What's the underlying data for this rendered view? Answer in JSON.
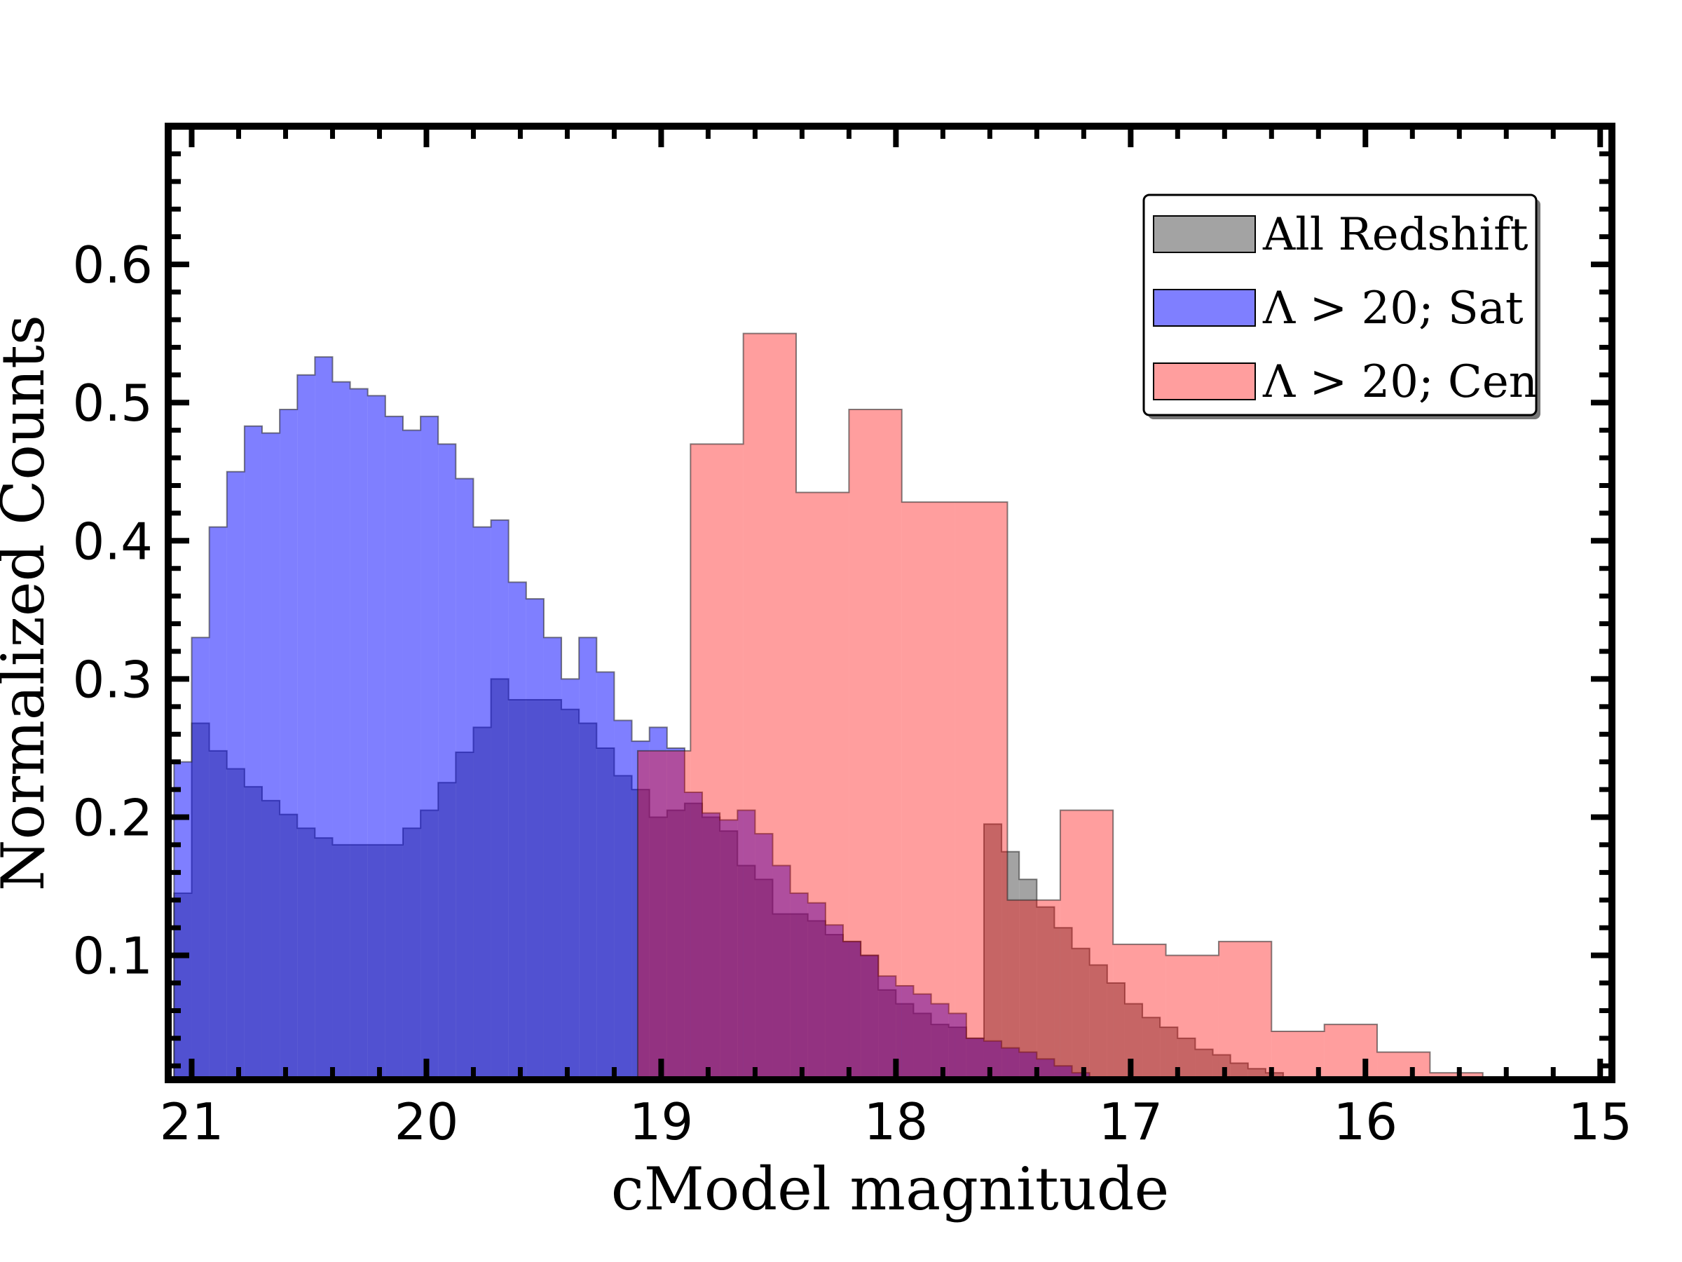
{
  "chart_data": {
    "type": "histogram",
    "title": "",
    "xlabel": "cModel magnitude",
    "ylabel": "Normalized Counts",
    "xlim": [
      21.1,
      14.95
    ],
    "ylim": [
      0.01,
      0.7
    ],
    "x_inverted": true,
    "xticks": [
      21,
      20,
      19,
      18,
      17,
      16,
      15
    ],
    "yticks": [
      0.1,
      0.2,
      0.3,
      0.4,
      0.5,
      0.6
    ],
    "xtick_labels": [
      "21",
      "20",
      "19",
      "18",
      "17",
      "16",
      "15"
    ],
    "ytick_labels": [
      "0.1",
      "0.2",
      "0.3",
      "0.4",
      "0.5",
      "0.6"
    ],
    "grid": false,
    "legend_position": "top-right",
    "series": [
      {
        "name": "All Redshift",
        "color": "#666666",
        "bin_width": 0.075,
        "bins_start": [
          21.075,
          21.0,
          20.925,
          20.85,
          20.775,
          20.7,
          20.625,
          20.55,
          20.475,
          20.4,
          20.325,
          20.25,
          20.175,
          20.1,
          20.025,
          19.95,
          19.875,
          19.8,
          19.725,
          19.65,
          19.575,
          19.5,
          19.425,
          19.35,
          19.275,
          19.2,
          19.125,
          19.05,
          18.975,
          18.9,
          18.825,
          18.75,
          18.675,
          18.6,
          18.525,
          18.45,
          18.375,
          18.3,
          18.225,
          18.15,
          18.075,
          18.0,
          17.925,
          17.85,
          17.775,
          17.7,
          17.625,
          17.55,
          17.475,
          17.4,
          17.325,
          17.25,
          17.175,
          17.1,
          17.025,
          16.95,
          16.875,
          16.8,
          16.725,
          16.65,
          16.575,
          16.5,
          16.425,
          16.35,
          16.275,
          16.2,
          16.125,
          16.05,
          15.975
        ],
        "values": [
          0.145,
          0.268,
          0.248,
          0.235,
          0.222,
          0.212,
          0.202,
          0.192,
          0.185,
          0.18,
          0.18,
          0.18,
          0.18,
          0.192,
          0.205,
          0.225,
          0.247,
          0.265,
          0.3,
          0.285,
          0.285,
          0.285,
          0.278,
          0.268,
          0.25,
          0.23,
          0.22,
          0.2,
          0.205,
          0.21,
          0.2,
          0.19,
          0.165,
          0.155,
          0.13,
          0.13,
          0.125,
          0.115,
          0.11,
          0.1,
          0.075,
          0.065,
          0.058,
          0.05,
          0.048,
          0.04,
          0.195,
          0.175,
          0.155,
          0.135,
          0.12,
          0.105,
          0.093,
          0.08,
          0.065,
          0.055,
          0.048,
          0.04,
          0.032,
          0.028,
          0.022,
          0.018,
          0.015,
          0.012,
          0.01,
          0.008,
          0.005,
          0.002,
          0.001
        ]
      },
      {
        "name": "Λ > 20; Sat",
        "color": "#0000ff",
        "bin_width": 0.075,
        "bins_start": [
          21.075,
          21.0,
          20.925,
          20.85,
          20.775,
          20.7,
          20.625,
          20.55,
          20.475,
          20.4,
          20.325,
          20.25,
          20.175,
          20.1,
          20.025,
          19.95,
          19.875,
          19.8,
          19.725,
          19.65,
          19.575,
          19.5,
          19.425,
          19.35,
          19.275,
          19.2,
          19.125,
          19.05,
          18.975,
          18.9,
          18.825,
          18.75,
          18.675,
          18.6,
          18.525,
          18.45,
          18.375,
          18.3,
          18.225,
          18.15,
          18.075,
          18.0,
          17.925,
          17.85,
          17.775,
          17.7,
          17.625,
          17.55,
          17.475,
          17.4,
          17.325,
          17.25,
          17.175,
          17.1
        ],
        "values": [
          0.24,
          0.33,
          0.41,
          0.45,
          0.483,
          0.478,
          0.495,
          0.52,
          0.533,
          0.515,
          0.51,
          0.505,
          0.49,
          0.48,
          0.49,
          0.47,
          0.445,
          0.41,
          0.415,
          0.37,
          0.358,
          0.33,
          0.3,
          0.33,
          0.305,
          0.27,
          0.255,
          0.265,
          0.25,
          0.218,
          0.203,
          0.198,
          0.205,
          0.188,
          0.165,
          0.145,
          0.138,
          0.122,
          0.11,
          0.1,
          0.085,
          0.078,
          0.072,
          0.065,
          0.058,
          0.04,
          0.038,
          0.033,
          0.03,
          0.025,
          0.02,
          0.015,
          0.01,
          0.005
        ]
      },
      {
        "name": "Λ > 20; Cen",
        "color": "#ff0000",
        "bin_width": 0.225,
        "bins_start": [
          19.1,
          18.875,
          18.65,
          18.425,
          18.2,
          17.975,
          17.75,
          17.525,
          17.3,
          17.075,
          16.85,
          16.625,
          16.4,
          16.175,
          15.95,
          15.725
        ],
        "values": [
          0.248,
          0.47,
          0.55,
          0.435,
          0.495,
          0.428,
          0.428,
          0.14,
          0.205,
          0.108,
          0.1,
          0.11,
          0.045,
          0.05,
          0.03,
          0.015
        ]
      }
    ]
  }
}
